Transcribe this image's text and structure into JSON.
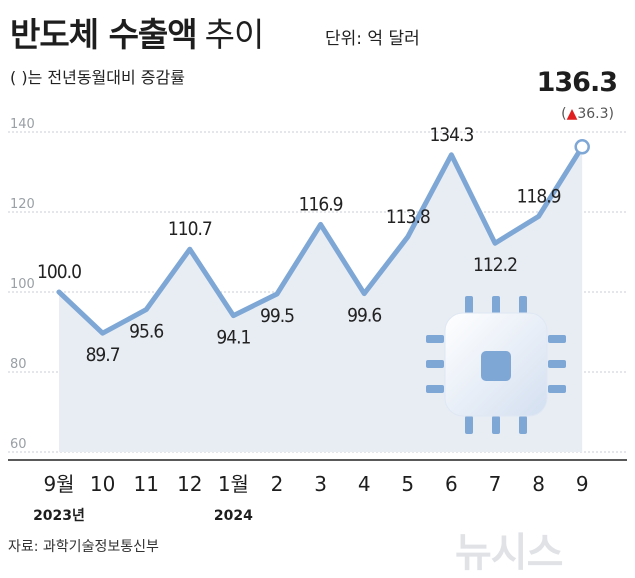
{
  "header": {
    "title_bold": "반도체 수출액",
    "title_light": "추이",
    "unit": "단위: 억 달러",
    "subtitle": "( )는 전년동월대비 증감률"
  },
  "source": "자료: 과학기술정보통신부",
  "watermark": "뉴시스",
  "colors": {
    "line": "#7ea7d6",
    "area": "#e8edf4",
    "grid": "#c9ced6",
    "marker_fill": "#ffffff",
    "up_arrow": "#e02020"
  },
  "chart_data": {
    "type": "area",
    "title": "반도체 수출액 추이",
    "ylabel": "억 달러",
    "xlabel": "",
    "ylim": [
      60,
      145
    ],
    "yticks": [
      60,
      80,
      100,
      120,
      140
    ],
    "categories": [
      "9월",
      "10",
      "11",
      "12",
      "1월",
      "2",
      "3",
      "4",
      "5",
      "6",
      "7",
      "8",
      "9"
    ],
    "year_labels": [
      {
        "index": 0,
        "label": "2023년"
      },
      {
        "index": 4,
        "label": "2024"
      }
    ],
    "series": [
      {
        "name": "반도체 수출액",
        "values": [
          100.0,
          89.7,
          95.6,
          110.7,
          94.1,
          99.5,
          116.9,
          99.6,
          113.8,
          134.3,
          112.2,
          118.9,
          136.3
        ],
        "labels": [
          "100.0",
          "89.7",
          "95.6",
          "110.7",
          "94.1",
          "99.5",
          "116.9",
          "99.6",
          "113.8",
          "134.3",
          "112.2",
          "118.9",
          "136.3"
        ]
      }
    ],
    "last_change": {
      "arrow": "▲",
      "value": "36.3",
      "open": "(",
      "close": ")"
    },
    "grid": true
  }
}
